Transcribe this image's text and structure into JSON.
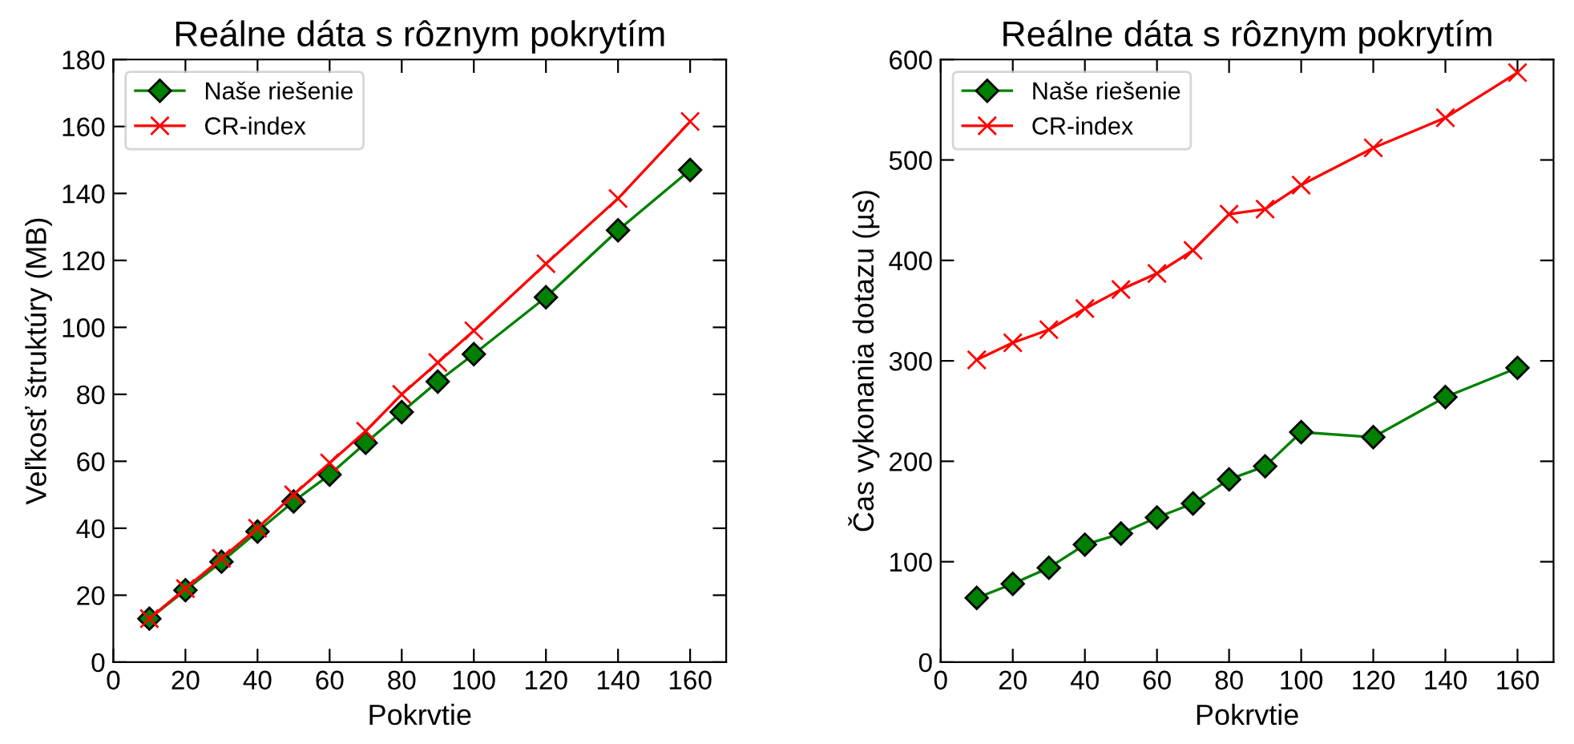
{
  "chart_data": [
    {
      "type": "line",
      "title": "Reálne dáta s rôznym pokrytím",
      "xlabel": "Pokrvtie",
      "ylabel": "Veľkosť štruktúry (MB)",
      "x": [
        10,
        20,
        30,
        40,
        50,
        60,
        70,
        80,
        90,
        100,
        120,
        140,
        160
      ],
      "series": [
        {
          "name": "Naše riešenie",
          "color": "#008000",
          "marker": "diamond",
          "values": [
            13,
            21.5,
            30,
            39,
            48,
            56,
            65.5,
            74.7,
            83.8,
            92,
            109,
            129,
            147
          ]
        },
        {
          "name": "CR-index",
          "color": "#ff0000",
          "marker": "cross",
          "values": [
            13,
            22,
            31,
            40,
            50,
            59.5,
            69,
            80,
            89.5,
            99,
            119,
            138.5,
            161.5
          ]
        }
      ],
      "xlim": [
        0,
        170
      ],
      "xticks": [
        0,
        20,
        40,
        60,
        80,
        100,
        120,
        140,
        160
      ],
      "ylim": [
        0,
        180
      ],
      "yticks": [
        0,
        20,
        40,
        60,
        80,
        100,
        120,
        140,
        160,
        180
      ],
      "legend": "top left",
      "grid": false
    },
    {
      "type": "line",
      "title": "Reálne dáta s rôznym pokrytím",
      "xlabel": "Pokrvtie",
      "ylabel": "Čas vykonania dotazu (µs)",
      "x": [
        10,
        20,
        30,
        40,
        50,
        60,
        70,
        80,
        90,
        100,
        120,
        140,
        160
      ],
      "series": [
        {
          "name": "Naše riešenie",
          "color": "#008000",
          "marker": "diamond",
          "values": [
            64,
            78,
            94,
            117,
            128,
            144,
            158,
            182,
            195,
            229,
            224,
            264,
            293
          ]
        },
        {
          "name": "CR-index",
          "color": "#ff0000",
          "marker": "cross",
          "values": [
            301,
            318,
            331,
            352,
            371,
            387,
            410,
            446,
            451,
            475,
            512,
            542,
            587
          ]
        }
      ],
      "xlim": [
        0,
        170
      ],
      "xticks": [
        0,
        20,
        40,
        60,
        80,
        100,
        120,
        140,
        160
      ],
      "ylim": [
        0,
        600
      ],
      "yticks": [
        0,
        100,
        200,
        300,
        400,
        500,
        600
      ],
      "legend": "top left",
      "grid": false
    }
  ]
}
